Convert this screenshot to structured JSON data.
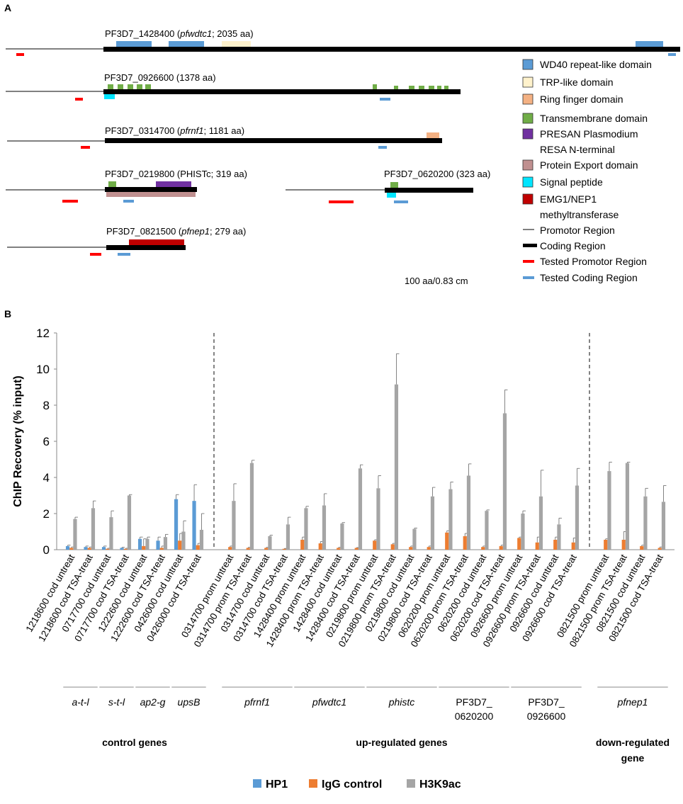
{
  "panel_a": {
    "letter": "A",
    "scale_note": "100 aa/0.83 cm",
    "genes": {
      "g1428400": {
        "id": "PF3D7_1428400 (",
        "alias": "pfwdtc1",
        "tail": "; 2035 aa)"
      },
      "g0926600": {
        "id": "PF3D7_0926600 (1378 aa)"
      },
      "g0314700": {
        "id": "PF3D7_0314700 (",
        "alias": "pfrnf1",
        "tail": "; 1181 aa)"
      },
      "g0219800": {
        "id": "PF3D7_0219800 (PHISTc; 319 aa)"
      },
      "g0620200": {
        "id": "PF3D7_0620200 (323 aa)"
      },
      "g0821500": {
        "id": "PF3D7_0821500 (",
        "alias": "pfnep1",
        "tail": "; 279 aa)"
      }
    },
    "legend": [
      {
        "label": "WD40 repeat-like domain",
        "color": "#5b9bd5",
        "kind": "box"
      },
      {
        "label": "TRP-like domain",
        "color": "#fff2cc",
        "kind": "box"
      },
      {
        "label": "Ring finger domain",
        "color": "#f4b183",
        "kind": "box"
      },
      {
        "label": "Transmembrane domain",
        "color": "#70ad47",
        "kind": "box"
      },
      {
        "label": "PRESAN Plasmodium",
        "label2": "RESA N-terminal",
        "color": "#7030a0",
        "kind": "box"
      },
      {
        "label": "Protein Export domain",
        "color": "#c09090",
        "kind": "box"
      },
      {
        "label": "Signal peptide",
        "color": "#00e5ff",
        "kind": "box"
      },
      {
        "label": "EMG1/NEP1",
        "label2": "methyltransferase",
        "color": "#c00000",
        "kind": "box"
      },
      {
        "label": "Promotor Region",
        "color": "#000000",
        "kind": "thin"
      },
      {
        "label": "Coding Region",
        "color": "#000000",
        "kind": "thick"
      },
      {
        "label": "Tested Promotor Region",
        "color": "#ff0000",
        "kind": "dash"
      },
      {
        "label": "Tested Coding Region",
        "color": "#5b9bd5",
        "kind": "dash"
      }
    ]
  },
  "panel_b": {
    "letter": "B",
    "chart_data": {
      "type": "bar",
      "ylabel": "ChIP Recovery (% input)",
      "ylim": [
        0,
        12
      ],
      "yticks": [
        0,
        2,
        4,
        6,
        8,
        10,
        12
      ],
      "series_names": [
        "HP1",
        "IgG control",
        "H3K9ac"
      ],
      "colors": {
        "HP1": "#5b9bd5",
        "IgG control": "#ed7d31",
        "H3K9ac": "#a5a5a5"
      },
      "categories": [
        "1218600 cod untreat",
        "1218600 cod TSA-treat",
        "0717700 cod untreat",
        "0717700 cod TSA-treat",
        "1222600 cod untreat",
        "1222600 cod TSA-treat",
        "0426000 cod untreat",
        "0426000 cod TSA-treat",
        "0314700 prom untreat",
        "0314700 prom TSA-treat",
        "0314700 cod untreat",
        "0314700 cod TSA-treat",
        "1428400 prom untreat",
        "1428400 prom TSA-treat",
        "1428400 cod untreat",
        "1428400 cod TSA-treat",
        "0219800 prom untreat",
        "0219800 prom TSA-treat",
        "0219800 cod untreat",
        "0219800 cod TSA-treat",
        "0620200 prom untreat",
        "0620200 prom TSA-treat",
        "0620200 cod untreat",
        "0620200 cod TSA-treat",
        "0926600 prom untreat",
        "0926600 prom TSA-treat",
        "0926600 cod untreat",
        "0926600 cod TSA-treat",
        "0821500 prom untreat",
        "0821500 prom TSA-treat",
        "0821500 cod untreat",
        "0821500 cod TSA-treat"
      ],
      "series": [
        {
          "name": "HP1",
          "values": [
            0.2,
            0.15,
            0.15,
            0.1,
            0.6,
            0.5,
            2.8,
            2.7,
            null,
            null,
            null,
            null,
            null,
            null,
            null,
            null,
            null,
            null,
            null,
            null,
            null,
            null,
            null,
            null,
            null,
            null,
            null,
            null,
            null,
            null,
            null,
            null
          ],
          "errors": [
            0.05,
            0.05,
            0.05,
            0.03,
            0.1,
            0.2,
            0.25,
            0.9,
            null,
            null,
            null,
            null,
            null,
            null,
            null,
            null,
            null,
            null,
            null,
            null,
            null,
            null,
            null,
            null,
            null,
            null,
            null,
            null,
            null,
            null,
            null,
            null
          ]
        },
        {
          "name": "IgG control",
          "values": [
            0.1,
            0.1,
            0.05,
            0.05,
            0.2,
            0.1,
            0.5,
            0.25,
            0.15,
            0.1,
            0.1,
            0.05,
            0.55,
            0.35,
            0.1,
            0.1,
            0.5,
            0.3,
            0.15,
            0.15,
            0.95,
            0.75,
            0.15,
            0.2,
            0.65,
            0.4,
            0.55,
            0.4,
            0.55,
            0.55,
            0.2,
            0.1
          ],
          "errors": [
            0.05,
            0.05,
            0.03,
            0.03,
            0.4,
            0.1,
            0.4,
            0.1,
            0.05,
            0.03,
            0.03,
            0.02,
            0.15,
            0.1,
            0.03,
            0.02,
            0.05,
            0.05,
            0.05,
            0.05,
            0.1,
            0.15,
            0.05,
            0.05,
            0.05,
            0.3,
            0.15,
            0.25,
            0.05,
            0.45,
            0.05,
            0.05
          ]
        },
        {
          "name": "H3K9ac",
          "values": [
            1.7,
            2.3,
            1.8,
            3.0,
            0.6,
            0.7,
            1.0,
            1.1,
            2.7,
            4.8,
            0.75,
            1.4,
            2.3,
            2.45,
            1.45,
            4.5,
            3.4,
            9.15,
            1.15,
            2.95,
            3.35,
            4.1,
            2.15,
            7.55,
            2.0,
            2.95,
            1.4,
            3.55,
            4.35,
            4.8,
            2.95,
            2.65
          ],
          "errors": [
            0.1,
            0.4,
            0.35,
            0.05,
            0.1,
            0.15,
            0.6,
            0.9,
            0.95,
            0.15,
            0.05,
            0.4,
            0.1,
            0.65,
            0.05,
            0.2,
            0.7,
            1.7,
            0.05,
            0.5,
            0.4,
            0.65,
            0.05,
            1.3,
            0.15,
            1.45,
            0.35,
            0.95,
            0.5,
            0.05,
            0.45,
            0.9
          ]
        }
      ],
      "gene_groups": [
        {
          "label": "a-t-l",
          "italic": true,
          "start": 0,
          "end": 1
        },
        {
          "label": "s-t-l",
          "italic": true,
          "start": 2,
          "end": 3
        },
        {
          "label": "ap2-g",
          "italic": true,
          "start": 4,
          "end": 5
        },
        {
          "label": "upsB",
          "italic": true,
          "start": 6,
          "end": 7
        },
        {
          "label": "pfrnf1",
          "italic": true,
          "start": 8,
          "end": 11
        },
        {
          "label": "pfwdtc1",
          "italic": true,
          "start": 12,
          "end": 15
        },
        {
          "label": "phistc",
          "italic": true,
          "start": 16,
          "end": 19
        },
        {
          "label": "PF3D7_",
          "label2": "0620200",
          "italic": false,
          "start": 20,
          "end": 23
        },
        {
          "label": "PF3D7_",
          "label2": "0926600",
          "italic": false,
          "start": 24,
          "end": 27
        },
        {
          "label": "pfnep1",
          "italic": true,
          "start": 28,
          "end": 31
        }
      ],
      "class_labels": [
        {
          "label": "control genes"
        },
        {
          "label": "up-regulated genes"
        },
        {
          "label": "down-regulated",
          "label2": "gene"
        }
      ],
      "legend": [
        "HP1",
        "IgG control",
        "H3K9ac"
      ]
    }
  }
}
